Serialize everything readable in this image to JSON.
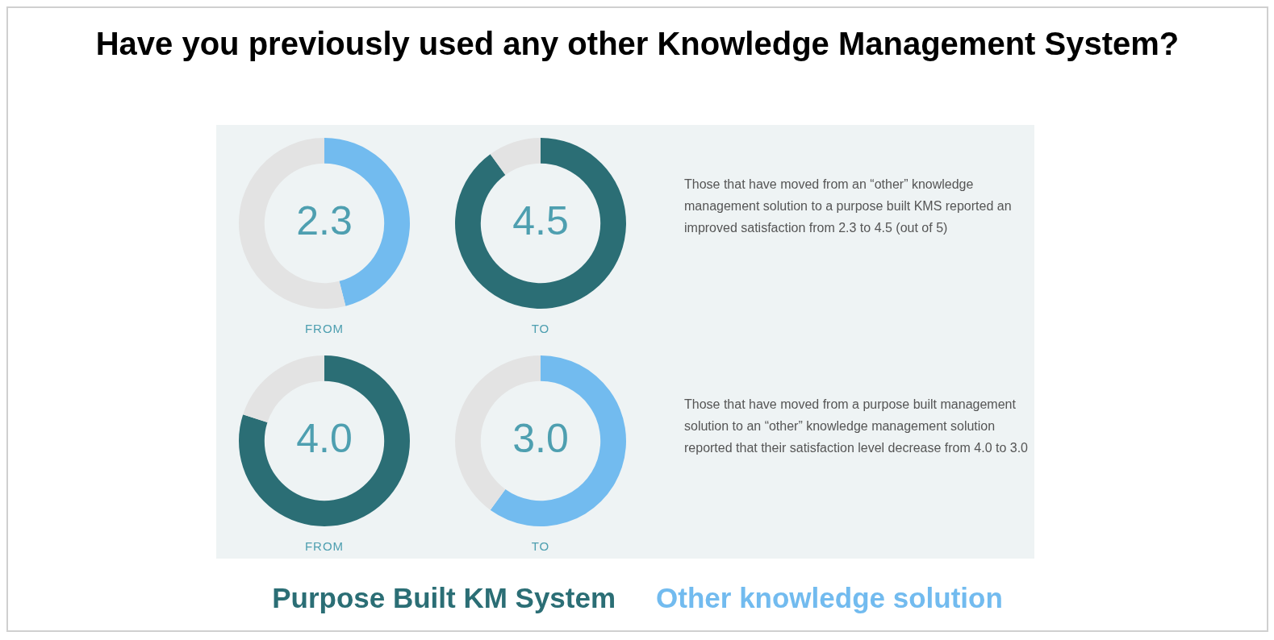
{
  "chart_data": [
    {
      "type": "donut",
      "title": "Have you previously used any other Knowledge Management System?",
      "categories": [
        null,
        null
      ],
      "values": [
        2.3,
        2.7
      ],
      "colors": [
        "#72bbef",
        "#e3e3e3"
      ],
      "value_labels": [
        "2.3",
        null
      ],
      "xlabel": "FROM"
    },
    {
      "type": "donut",
      "categories": [
        null,
        null
      ],
      "values": [
        4.5,
        0.5
      ],
      "colors": [
        "#2b6e75",
        "#e3e3e3"
      ],
      "value_labels": [
        "4.5",
        null
      ],
      "xlabel": "TO"
    },
    {
      "type": "donut",
      "categories": [
        null,
        null
      ],
      "values": [
        4.0,
        1.0
      ],
      "colors": [
        "#2b6e75",
        "#e3e3e3"
      ],
      "value_labels": [
        "4.0",
        null
      ],
      "xlabel": "FROM"
    },
    {
      "type": "donut",
      "categories": [
        null,
        null
      ],
      "values": [
        3.0,
        2.0
      ],
      "colors": [
        "#72bbef",
        "#e3e3e3"
      ],
      "value_labels": [
        "3.0",
        null
      ],
      "xlabel": "TO"
    },
    {
      "type": "other",
      "annotations": [
        "Those that have moved from an “other” knowledge management solution to a purpose built KMS reported an improved satisfaction from 2.3 to 4.5 (out of 5)",
        "Those that have moved from a purpose built management solution to an “other” knowledge management solution reported that their satisfaction level decrease from 4.0 to 3.0"
      ],
      "series": [
        {
          "name": "Purpose Built KM System",
          "color": "#2b6e75"
        },
        {
          "name": "Other knowledge solution",
          "color": "#72bbef"
        }
      ]
    }
  ]
}
